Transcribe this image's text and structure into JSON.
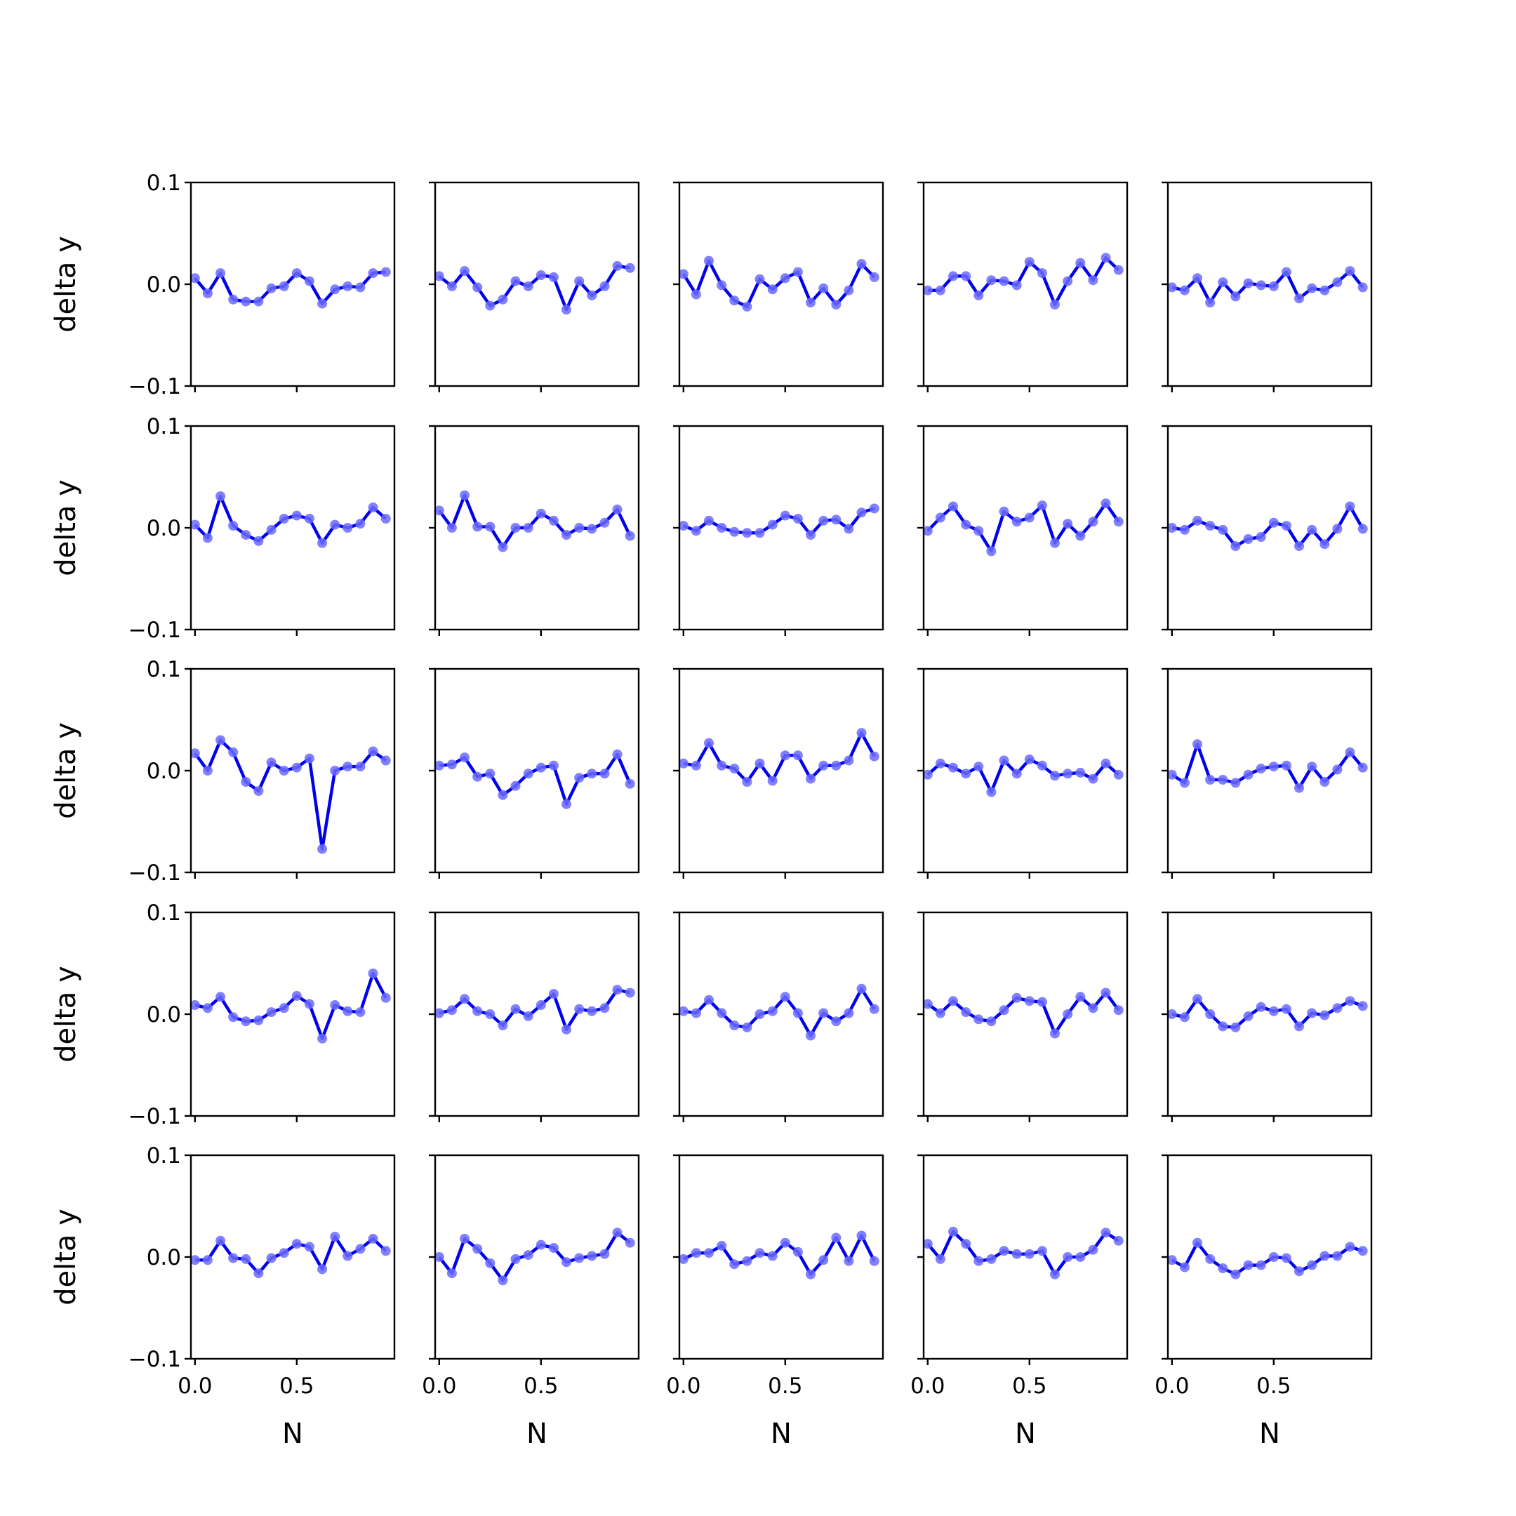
{
  "chart_data": {
    "type": "line",
    "layout": "5x5 grid of small multiples with shared x and y axes",
    "ylabel": "delta y",
    "xlabel": "N",
    "ylim": [
      -0.1,
      0.1
    ],
    "xlim": [
      -0.02,
      0.98
    ],
    "yticks": [
      0.1,
      0.0,
      -0.1
    ],
    "ytick_labels": [
      "0.1",
      "0.0",
      "−0.1"
    ],
    "xticks": [
      0.0,
      0.5
    ],
    "xtick_labels": [
      "0.0",
      "0.5"
    ],
    "grid": false,
    "line_color": "#0000ee",
    "marker_color": "#6b6bff",
    "x": [
      0.0,
      0.0625,
      0.125,
      0.1875,
      0.25,
      0.3125,
      0.375,
      0.4375,
      0.5,
      0.5625,
      0.625,
      0.6875,
      0.75,
      0.8125,
      0.875,
      0.9375
    ],
    "panels": [
      {
        "values": [
          0.006,
          -0.009,
          0.011,
          -0.015,
          -0.017,
          -0.017,
          -0.004,
          -0.002,
          0.011,
          0.003,
          -0.019,
          -0.005,
          -0.002,
          -0.003,
          0.011,
          0.012
        ]
      },
      {
        "values": [
          0.008,
          -0.002,
          0.013,
          -0.003,
          -0.021,
          -0.015,
          0.003,
          -0.002,
          0.009,
          0.007,
          -0.025,
          0.003,
          -0.011,
          -0.002,
          0.018,
          0.016
        ]
      },
      {
        "values": [
          0.01,
          -0.01,
          0.023,
          -0.001,
          -0.016,
          -0.022,
          0.005,
          -0.005,
          0.006,
          0.012,
          -0.018,
          -0.004,
          -0.02,
          -0.006,
          0.02,
          0.007
        ]
      },
      {
        "values": [
          -0.006,
          -0.006,
          0.008,
          0.008,
          -0.011,
          0.004,
          0.003,
          -0.001,
          0.022,
          0.011,
          -0.02,
          0.003,
          0.021,
          0.004,
          0.026,
          0.014
        ]
      },
      {
        "values": [
          -0.003,
          -0.006,
          0.006,
          -0.018,
          0.002,
          -0.012,
          0.001,
          -0.001,
          -0.002,
          0.012,
          -0.014,
          -0.004,
          -0.006,
          0.002,
          0.013,
          -0.003
        ]
      },
      {
        "values": [
          0.003,
          -0.01,
          0.031,
          0.002,
          -0.007,
          -0.013,
          -0.002,
          0.009,
          0.012,
          0.009,
          -0.015,
          0.003,
          0.0,
          0.004,
          0.02,
          0.009
        ]
      },
      {
        "values": [
          0.017,
          0.0,
          0.032,
          0.001,
          0.001,
          -0.019,
          0.0,
          0.0,
          0.014,
          0.007,
          -0.007,
          0.0,
          -0.001,
          0.005,
          0.018,
          -0.008
        ]
      },
      {
        "values": [
          0.002,
          -0.003,
          0.007,
          0.0,
          -0.004,
          -0.005,
          -0.005,
          0.003,
          0.012,
          0.009,
          -0.007,
          0.007,
          0.008,
          -0.001,
          0.015,
          0.019
        ]
      },
      {
        "values": [
          -0.003,
          0.01,
          0.021,
          0.003,
          -0.003,
          -0.023,
          0.016,
          0.006,
          0.01,
          0.022,
          -0.015,
          0.004,
          -0.008,
          0.006,
          0.024,
          0.006
        ]
      },
      {
        "values": [
          0.0,
          -0.002,
          0.007,
          0.002,
          -0.002,
          -0.018,
          -0.011,
          -0.009,
          0.005,
          0.002,
          -0.018,
          -0.002,
          -0.016,
          -0.001,
          0.021,
          -0.001
        ]
      },
      {
        "values": [
          0.017,
          0.0,
          0.03,
          0.018,
          -0.011,
          -0.02,
          0.008,
          0.0,
          0.003,
          0.012,
          -0.077,
          0.0,
          0.004,
          0.004,
          0.019,
          0.01
        ]
      },
      {
        "values": [
          0.005,
          0.006,
          0.013,
          -0.006,
          -0.003,
          -0.024,
          -0.015,
          -0.003,
          0.003,
          0.005,
          -0.033,
          -0.007,
          -0.003,
          -0.003,
          0.016,
          -0.013
        ]
      },
      {
        "values": [
          0.007,
          0.005,
          0.027,
          0.005,
          0.002,
          -0.011,
          0.007,
          -0.01,
          0.015,
          0.015,
          -0.008,
          0.005,
          0.005,
          0.01,
          0.037,
          0.014
        ]
      },
      {
        "values": [
          -0.004,
          0.007,
          0.003,
          -0.003,
          0.004,
          -0.021,
          0.01,
          -0.003,
          0.011,
          0.005,
          -0.005,
          -0.003,
          -0.002,
          -0.008,
          0.007,
          -0.004
        ]
      },
      {
        "values": [
          -0.004,
          -0.012,
          0.026,
          -0.009,
          -0.009,
          -0.012,
          -0.004,
          0.002,
          0.004,
          0.005,
          -0.017,
          0.004,
          -0.011,
          0.001,
          0.018,
          0.003
        ]
      },
      {
        "values": [
          0.009,
          0.006,
          0.017,
          -0.003,
          -0.007,
          -0.006,
          0.002,
          0.006,
          0.018,
          0.01,
          -0.024,
          0.009,
          0.003,
          0.002,
          0.04,
          0.016
        ]
      },
      {
        "values": [
          0.001,
          0.004,
          0.015,
          0.003,
          0.0,
          -0.011,
          0.005,
          -0.002,
          0.009,
          0.02,
          -0.015,
          0.005,
          0.003,
          0.006,
          0.024,
          0.021
        ]
      },
      {
        "values": [
          0.003,
          0.001,
          0.014,
          0.001,
          -0.011,
          -0.013,
          0.0,
          0.003,
          0.017,
          0.001,
          -0.021,
          0.001,
          -0.007,
          0.001,
          0.025,
          0.005
        ]
      },
      {
        "values": [
          0.01,
          0.001,
          0.013,
          0.002,
          -0.005,
          -0.007,
          0.004,
          0.016,
          0.013,
          0.012,
          -0.019,
          0.0,
          0.017,
          0.006,
          0.021,
          0.004
        ]
      },
      {
        "values": [
          0.0,
          -0.003,
          0.015,
          0.0,
          -0.012,
          -0.013,
          -0.002,
          0.007,
          0.003,
          0.005,
          -0.012,
          0.001,
          -0.001,
          0.006,
          0.013,
          0.008
        ]
      },
      {
        "values": [
          -0.003,
          -0.003,
          0.016,
          -0.001,
          -0.002,
          -0.016,
          -0.001,
          0.004,
          0.013,
          0.01,
          -0.012,
          0.02,
          0.001,
          0.008,
          0.018,
          0.006
        ]
      },
      {
        "values": [
          0.0,
          -0.016,
          0.018,
          0.008,
          -0.006,
          -0.023,
          -0.002,
          0.002,
          0.012,
          0.009,
          -0.005,
          -0.001,
          0.001,
          0.003,
          0.024,
          0.014
        ]
      },
      {
        "values": [
          -0.002,
          0.004,
          0.004,
          0.011,
          -0.007,
          -0.004,
          0.004,
          0.001,
          0.014,
          0.005,
          -0.017,
          -0.003,
          0.019,
          -0.004,
          0.021,
          -0.004
        ]
      },
      {
        "values": [
          0.013,
          -0.002,
          0.025,
          0.013,
          -0.004,
          -0.002,
          0.006,
          0.003,
          0.003,
          0.006,
          -0.017,
          0.0,
          0.0,
          0.007,
          0.024,
          0.016
        ]
      },
      {
        "values": [
          -0.003,
          -0.01,
          0.014,
          -0.002,
          -0.011,
          -0.017,
          -0.008,
          -0.008,
          0.0,
          -0.001,
          -0.014,
          -0.008,
          0.001,
          0.001,
          0.01,
          0.006
        ]
      }
    ]
  }
}
